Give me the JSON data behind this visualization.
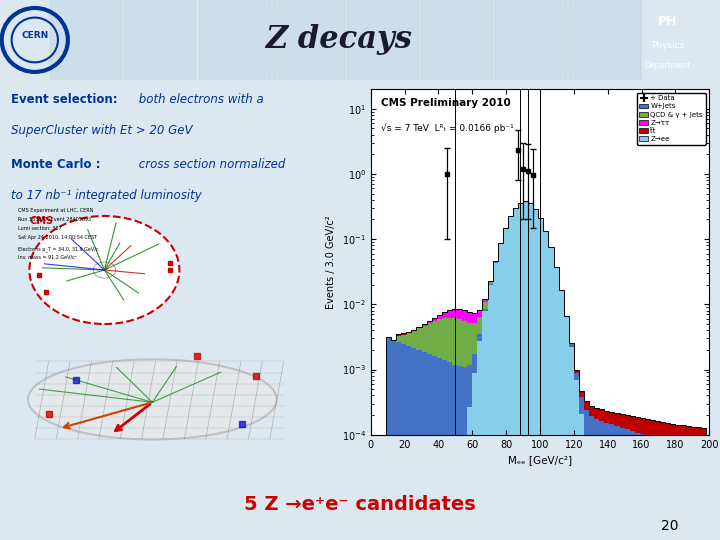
{
  "title": "Z decays",
  "title_fontsize": 22,
  "slide_number": "20",
  "cms_label": "CMS Preliminary 2010",
  "cms_sublabel": "√s = 7 TeV  Lᴿₜ = 0.0166 pb⁻¹",
  "ylabel": "Events / 3.0 GeV/c²",
  "xlabel": "Mₑₑ [GeV/c²]",
  "header_bg": "#b8cfe0",
  "slide_bg": "#dce8f0",
  "ph_bg": "#1a3a7a",
  "xmin": 0,
  "xmax": 200,
  "zee_color": "#87CEEB",
  "wjets_color": "#4472C4",
  "qcd_color": "#70AD47",
  "ztau_color": "#FF00FF",
  "ttbar_color": "#C00000",
  "bottom_text_color": "#cc0000",
  "left_text_color": "#003399"
}
